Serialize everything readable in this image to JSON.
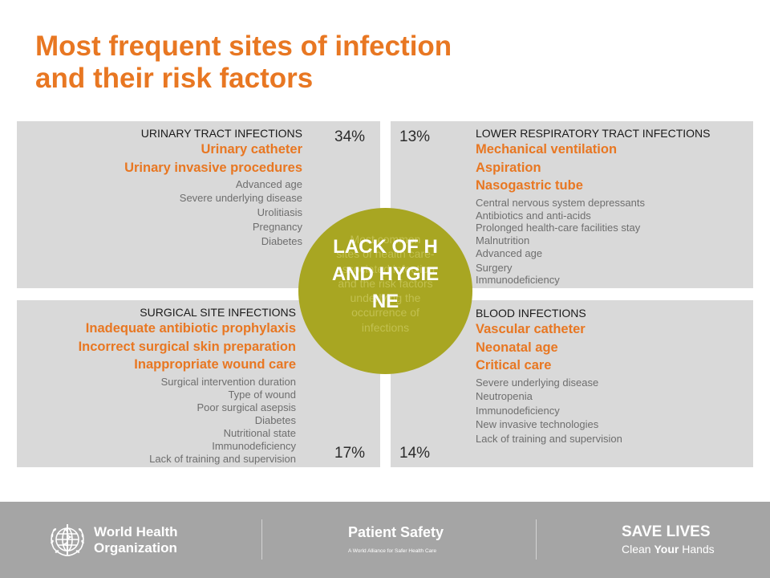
{
  "title": {
    "line1": "Most frequent  sites of infection",
    "line2": "and their risk factors"
  },
  "urinary": {
    "heading": "URINARY TRACT INFECTIONS",
    "percent": "34%",
    "major": [
      "Urinary catheter",
      "Urinary invasive procedures"
    ],
    "minor": [
      "Advanced age",
      "Severe underlying disease",
      "Urolitiasis",
      "Pregnancy",
      "Diabetes"
    ]
  },
  "respiratory": {
    "heading": "LOWER RESPIRATORY TRACT INFECTIONS",
    "percent": "13%",
    "major": [
      "Mechanical ventilation",
      "Aspiration",
      "Nasogastric tube"
    ],
    "minor": [
      "Central nervous system depressants",
      "Antibiotics and anti-acids",
      "Prolonged health-care facilities stay",
      "Malnutrition",
      "Advanced age",
      "Surgery",
      "Immunodeficiency"
    ]
  },
  "surgical": {
    "heading": "SURGICAL SITE INFECTIONS",
    "percent": "17%",
    "major": [
      "Inadequate antibiotic prophylaxis",
      "Incorrect surgical skin preparation",
      "Inappropriate wound care"
    ],
    "minor": [
      "Surgical intervention duration",
      "Type of wound",
      "Poor surgical asepsis",
      "Diabetes",
      "Nutritional state",
      "Immunodeficiency",
      "Lack of training and supervision"
    ]
  },
  "blood": {
    "heading": "BLOOD INFECTIONS",
    "percent": "14%",
    "major": [
      "Vascular catheter",
      "Neonatal age",
      "Critical care"
    ],
    "minor": [
      "Severe underlying disease",
      "Neutropenia",
      "Immunodeficiency",
      "New invasive technologies",
      "Lack of training and supervision"
    ]
  },
  "center": {
    "main": "LACK OF HAND HYGIENE",
    "ghost_lines": [
      "Most common",
      "sites of health care-",
      "associated infection",
      "and the risk factors",
      "underlying the",
      "occurrence of",
      "infections"
    ]
  },
  "footer": {
    "who_line1": "World Health",
    "who_line2": "Organization",
    "patient_safety": "Patient Safety",
    "patient_safety_sub": "A World Alliance for Safer Health Care",
    "save_lives": "SAVE LIVES",
    "clean_pre": "Clean ",
    "clean_your": "Your",
    "clean_post": " Hands"
  },
  "colors": {
    "accent_orange": "#e87722",
    "circle_olive": "#a8a622",
    "panel_gray": "#d9d9d9",
    "footer_gray": "#a5a5a5"
  },
  "icons": [
    "who-emblem-icon"
  ]
}
